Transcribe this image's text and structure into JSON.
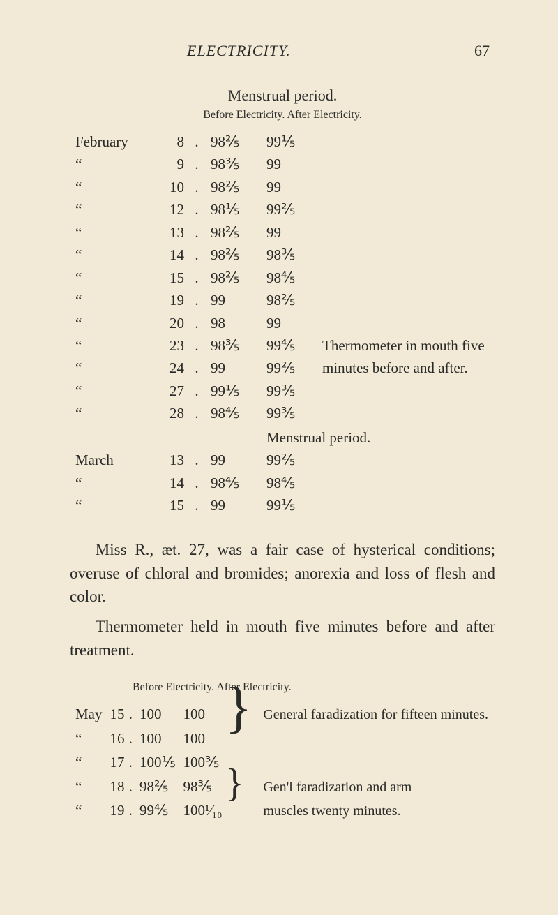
{
  "header": {
    "running_title": "ELECTRICITY.",
    "page_number": "67"
  },
  "block1": {
    "title": "Menstrual period.",
    "subhead": "Before Electricity. After Electricity.",
    "mid_title": "Menstrual period.",
    "rows": [
      {
        "month": "February",
        "day": "8",
        "before": "98⅖",
        "after": "99⅕",
        "note": ""
      },
      {
        "month": "“",
        "day": "9",
        "before": "98⅗",
        "after": "99",
        "note": ""
      },
      {
        "month": "“",
        "day": "10",
        "before": "98⅖",
        "after": "99",
        "note": ""
      },
      {
        "month": "“",
        "day": "12",
        "before": "98⅕",
        "after": "99⅖",
        "note": ""
      },
      {
        "month": "“",
        "day": "13",
        "before": "98⅖",
        "after": "99",
        "note": ""
      },
      {
        "month": "“",
        "day": "14",
        "before": "98⅖",
        "after": "98⅗",
        "note": ""
      },
      {
        "month": "“",
        "day": "15",
        "before": "98⅖",
        "after": "98⅘",
        "note": ""
      },
      {
        "month": "“",
        "day": "19",
        "before": "99",
        "after": "98⅖",
        "note": ""
      },
      {
        "month": "“",
        "day": "20",
        "before": "98",
        "after": "99",
        "note": ""
      },
      {
        "month": "“",
        "day": "23",
        "before": "98⅗",
        "after": "99⅘",
        "note": "Thermometer in mouth five"
      },
      {
        "month": "“",
        "day": "24",
        "before": "99",
        "after": "99⅖",
        "note": "minutes before and after."
      },
      {
        "month": "“",
        "day": "27",
        "before": "99⅕",
        "after": "99⅗",
        "note": ""
      },
      {
        "month": "“",
        "day": "28",
        "before": "98⅘",
        "after": "99⅗",
        "note": ""
      }
    ],
    "rows2": [
      {
        "month": "March",
        "day": "13",
        "before": "99",
        "after": "99⅖"
      },
      {
        "month": "“",
        "day": "14",
        "before": "98⅘",
        "after": "98⅘"
      },
      {
        "month": "“",
        "day": "15",
        "before": "99",
        "after": "99⅕"
      }
    ]
  },
  "paragraphs": {
    "p1": "Miss R., æt. 27, was a fair case of hysterical con­ditions; overuse of chloral and bromides; anorexia and loss of flesh and color.",
    "p2": "Thermometer held in mouth five minutes before and after treatment."
  },
  "block2": {
    "subhead": "Before Electricity. After Electricity.",
    "rows": [
      {
        "month": "May",
        "day": "15",
        "before": "100",
        "after": "100"
      },
      {
        "month": "“",
        "day": "16",
        "before": "100",
        "after": "100"
      },
      {
        "month": "“",
        "day": "17",
        "before": "100⅕",
        "after": "100⅗"
      },
      {
        "month": "“",
        "day": "18",
        "before": "98⅖",
        "after": "98⅗"
      },
      {
        "month": "“",
        "day": "19",
        "before": "99⅘",
        "after": "100¹⁄₁₀"
      }
    ],
    "note1": "General faradization for fif­teen minutes.",
    "note2a": "Gen'l faradization and arm",
    "note2b": "muscles twenty minutes."
  },
  "glyphs": {
    "dot": ".",
    "brace3": "}",
    "brace2": "}"
  }
}
